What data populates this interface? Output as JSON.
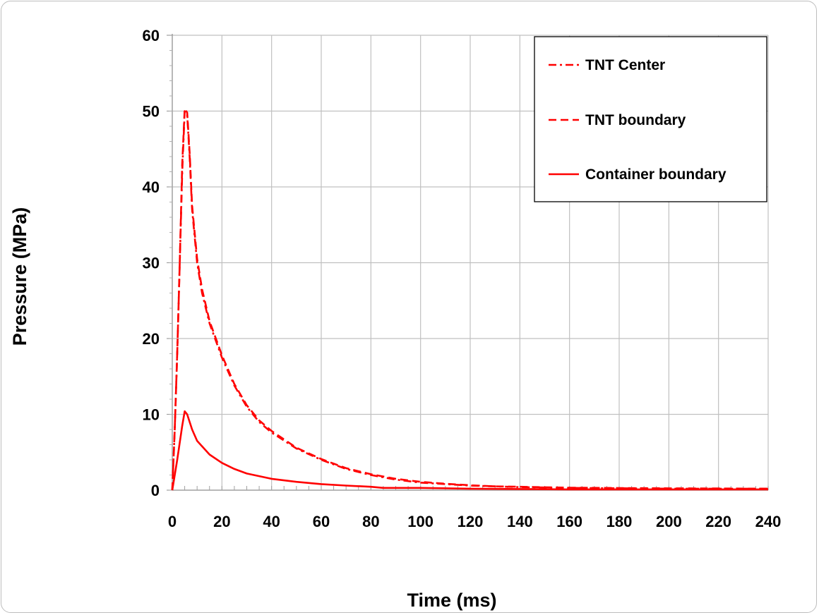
{
  "chart_data": {
    "type": "line",
    "xlabel": "Time (ms)",
    "ylabel": "Pressure (MPa)",
    "xlim": [
      0,
      240
    ],
    "ylim": [
      0,
      60
    ],
    "xticks": [
      0,
      20,
      40,
      60,
      80,
      100,
      120,
      140,
      160,
      180,
      200,
      220,
      240
    ],
    "yticks": [
      0,
      10,
      20,
      30,
      40,
      50,
      60
    ],
    "grid": true,
    "legend_position": "top-right",
    "line_color": "#ff0000",
    "series": [
      {
        "name": "TNT Center",
        "dash": "dashdot",
        "x": [
          0,
          1,
          2,
          3,
          4,
          5,
          6,
          7,
          8,
          10,
          12,
          15,
          20,
          25,
          30,
          35,
          40,
          50,
          60,
          70,
          80,
          90,
          100,
          110,
          120,
          130,
          140,
          150,
          160,
          180,
          200,
          220,
          240
        ],
        "y": [
          0,
          8,
          18,
          30,
          42,
          50,
          49.5,
          44,
          37,
          30,
          26,
          22,
          17.5,
          13.8,
          11,
          9,
          7.6,
          5.5,
          4.0,
          2.8,
          2.0,
          1.4,
          1.0,
          0.8,
          0.6,
          0.5,
          0.4,
          0.35,
          0.3,
          0.25,
          0.2,
          0.2,
          0.2
        ]
      },
      {
        "name": "TNT boundary",
        "dash": "dash",
        "x": [
          0,
          1,
          2,
          3,
          4,
          5,
          6,
          7,
          8,
          10,
          12,
          15,
          20,
          25,
          30,
          35,
          40,
          50,
          60,
          70,
          80,
          90,
          100,
          110,
          120,
          130,
          140,
          150,
          160,
          180,
          200,
          220,
          240
        ],
        "y": [
          0,
          8,
          18,
          30,
          43,
          50.3,
          49.8,
          44.5,
          37.5,
          30.5,
          26.5,
          22.3,
          17.8,
          14,
          11.2,
          9.2,
          7.8,
          5.6,
          4.1,
          2.9,
          2.1,
          1.5,
          1.1,
          0.85,
          0.65,
          0.5,
          0.45,
          0.38,
          0.33,
          0.28,
          0.24,
          0.22,
          0.2
        ]
      },
      {
        "name": "Container boundary",
        "dash": "solid",
        "x": [
          0,
          2,
          4,
          5,
          6,
          8,
          10,
          15,
          20,
          25,
          30,
          40,
          50,
          60,
          70,
          80,
          85,
          100,
          120,
          140,
          160,
          180,
          200,
          220,
          240
        ],
        "y": [
          0,
          4,
          8.5,
          10.4,
          10,
          8,
          6.5,
          4.7,
          3.6,
          2.8,
          2.2,
          1.5,
          1.1,
          0.8,
          0.6,
          0.45,
          0.3,
          0.3,
          0.2,
          0.15,
          0.1,
          0.1,
          0.1,
          0.1,
          0.1
        ]
      }
    ]
  }
}
